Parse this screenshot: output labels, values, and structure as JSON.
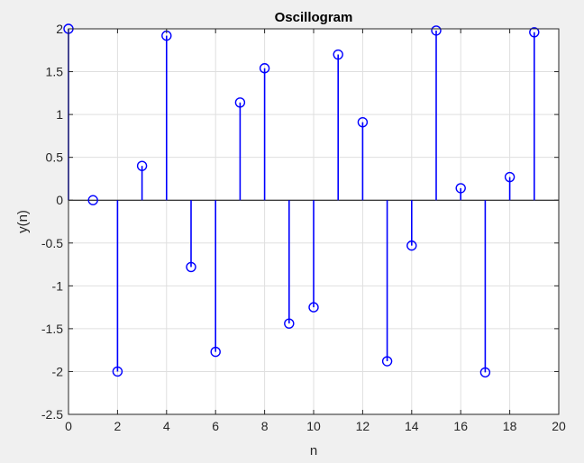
{
  "chart_data": {
    "type": "stem",
    "title": "Oscillogram",
    "xlabel": "n",
    "ylabel": "y(n)",
    "xlim": [
      0,
      20
    ],
    "ylim": [
      -2.5,
      2
    ],
    "xticks": [
      0,
      2,
      4,
      6,
      8,
      10,
      12,
      14,
      16,
      18,
      20
    ],
    "yticks": [
      -2.5,
      -2,
      -1.5,
      -1,
      -0.5,
      0,
      0.5,
      1,
      1.5,
      2
    ],
    "grid": true,
    "x": [
      0,
      1,
      2,
      3,
      4,
      5,
      6,
      7,
      8,
      9,
      10,
      11,
      12,
      13,
      14,
      15,
      16,
      17,
      18,
      19
    ],
    "y": [
      2.0,
      0.0,
      -2.0,
      0.4,
      1.92,
      -0.78,
      -1.77,
      1.14,
      1.54,
      -1.44,
      -1.25,
      1.7,
      0.91,
      -1.88,
      -0.53,
      1.98,
      0.14,
      -2.01,
      0.27,
      1.96
    ],
    "color": "#0000ff",
    "marker": "circle"
  }
}
